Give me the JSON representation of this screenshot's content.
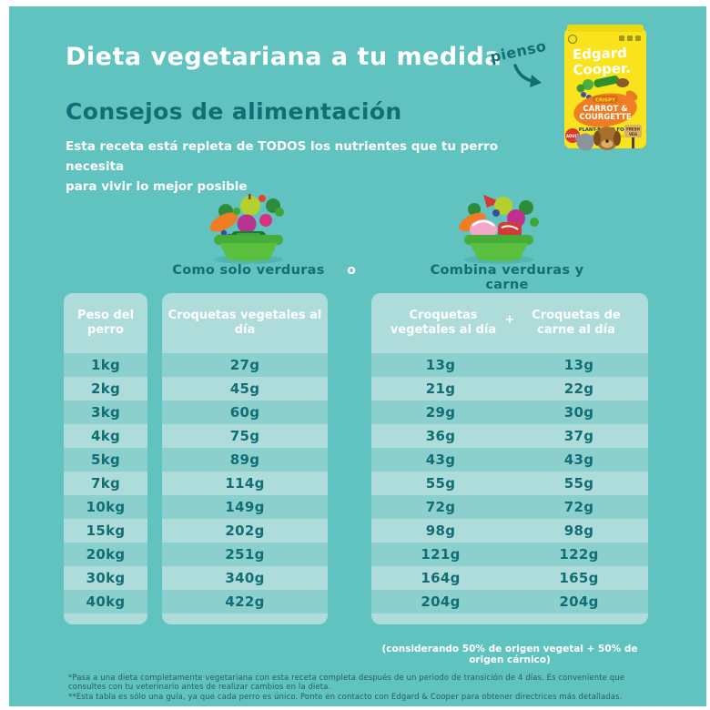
{
  "colors": {
    "bg": "#60c3c0",
    "light": "#aedcda",
    "medium": "#8bd0cd",
    "dark": "#126e75",
    "footnote": "#235f63",
    "white": "#ffffff",
    "bag_yellow": "#f9e31c",
    "carrot": "#ef7d23"
  },
  "header": {
    "title": "Dieta vegetariana a tu medida",
    "subtitle": "Consejos de alimentación",
    "description_line1": "Esta receta está repleta de TODOS los nutrientes que tu perro necesita",
    "description_line2": "para vivir lo mejor posible",
    "pienso_label": "pienso"
  },
  "product_bag": {
    "brand_line1": "Edgard",
    "brand_line2": "Cooper.",
    "crispy": "CRISPY",
    "flavor_line1": "CARROT &",
    "flavor_line2": "COURGETTE",
    "plant_based": "PLANT-BASED FOOD",
    "tagline": "Complete & balanced",
    "fresh_veg_line1": "FRESH",
    "fresh_veg_line2": "VEG",
    "adult_badge": "ADULT"
  },
  "options": {
    "left_label": "Como solo verduras",
    "separator": "o",
    "right_label": "Combina verduras y carne"
  },
  "table": {
    "col_peso_header": "Peso del perro",
    "col_veg_header": "Croquetas vegetales al día",
    "combo_veg_header": "Croquetas vegetales al día",
    "combo_plus": "+",
    "combo_meat_header": "Croquetas de carne al día",
    "rows": [
      {
        "peso": "1kg",
        "veg": "27g",
        "combo_veg": "13g",
        "combo_meat": "13g"
      },
      {
        "peso": "2kg",
        "veg": "45g",
        "combo_veg": "21g",
        "combo_meat": "22g"
      },
      {
        "peso": "3kg",
        "veg": "60g",
        "combo_veg": "29g",
        "combo_meat": "30g"
      },
      {
        "peso": "4kg",
        "veg": "75g",
        "combo_veg": "36g",
        "combo_meat": "37g"
      },
      {
        "peso": "5kg",
        "veg": "89g",
        "combo_veg": "43g",
        "combo_meat": "43g"
      },
      {
        "peso": "7kg",
        "veg": "114g",
        "combo_veg": "55g",
        "combo_meat": "55g"
      },
      {
        "peso": "10kg",
        "veg": "149g",
        "combo_veg": "72g",
        "combo_meat": "72g"
      },
      {
        "peso": "15kg",
        "veg": "202g",
        "combo_veg": "98g",
        "combo_meat": "98g"
      },
      {
        "peso": "20kg",
        "veg": "251g",
        "combo_veg": "121g",
        "combo_meat": "122g"
      },
      {
        "peso": "30kg",
        "veg": "340g",
        "combo_veg": "164g",
        "combo_meat": "165g"
      },
      {
        "peso": "40kg",
        "veg": "422g",
        "combo_veg": "204g",
        "combo_meat": "204g"
      }
    ],
    "combo_note": "(considerando 50% de origen vegetal + 50% de origen cárnico)"
  },
  "footnotes": {
    "line1": "*Pasa a una dieta completamente vegetariana con esta receta completa después de un periodo de transición de 4 días. Es conveniente que consultes con tu veterinario antes de realizar cambios en la dieta.",
    "line2": "**Esta tabla es sólo una guía, ya que cada perro es único. Ponte en contacto con Edgard & Cooper para obtener directrices más detalladas."
  }
}
